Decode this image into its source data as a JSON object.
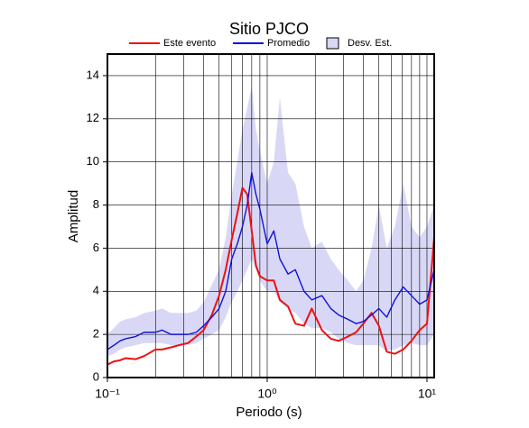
{
  "chart_data": {
    "type": "line",
    "title": "Sitio PJCO",
    "x_label": "Periodo (s)",
    "y_label": "Amplitud",
    "log_x": true,
    "grid": true,
    "xlim": [
      0.1,
      11.1
    ],
    "ylim": [
      0,
      15
    ],
    "xticks": [
      {
        "value": 0.1,
        "label": "10⁻¹"
      },
      {
        "value": 1,
        "label": "10⁰"
      },
      {
        "value": 10,
        "label": "10¹"
      }
    ],
    "xgrid": [
      0.2,
      0.3,
      0.4,
      0.5,
      0.6,
      0.7,
      0.8,
      0.9,
      2,
      3,
      4,
      5,
      6,
      7,
      8,
      9
    ],
    "yticks": [
      0,
      2,
      4,
      6,
      8,
      10,
      12,
      14
    ],
    "x": [
      0.1,
      0.11,
      0.12,
      0.13,
      0.15,
      0.17,
      0.2,
      0.22,
      0.25,
      0.28,
      0.32,
      0.36,
      0.4,
      0.45,
      0.5,
      0.55,
      0.6,
      0.65,
      0.7,
      0.75,
      0.8,
      0.85,
      0.9,
      1.0,
      1.1,
      1.2,
      1.35,
      1.5,
      1.7,
      1.9,
      2.2,
      2.5,
      2.8,
      3.2,
      3.6,
      4.0,
      4.5,
      5.0,
      5.6,
      6.3,
      7.1,
      8.0,
      9.0,
      10.0,
      11.1
    ],
    "band": {
      "name": "Desv. Est.",
      "color": "#d8d8f6",
      "upper": [
        2.0,
        2.3,
        2.6,
        2.7,
        2.8,
        3.0,
        3.1,
        3.2,
        3.0,
        3.0,
        3.0,
        3.1,
        3.5,
        4.3,
        5.0,
        6.5,
        8.5,
        10.0,
        11.5,
        12.5,
        13.5,
        11.5,
        10.5,
        9.0,
        10.0,
        13.0,
        9.5,
        9.0,
        7.0,
        6.0,
        6.3,
        5.5,
        5.0,
        4.5,
        4.0,
        4.5,
        6.0,
        8.0,
        6.0,
        7.0,
        9.0,
        7.0,
        6.5,
        7.0,
        8.0
      ],
      "lower": [
        1.0,
        1.1,
        1.3,
        1.4,
        1.5,
        1.6,
        1.6,
        1.6,
        1.5,
        1.5,
        1.5,
        1.6,
        1.8,
        2.0,
        2.2,
        2.8,
        3.5,
        4.0,
        4.5,
        5.0,
        5.5,
        5.0,
        4.5,
        4.0,
        4.0,
        3.5,
        3.2,
        3.0,
        2.5,
        2.3,
        2.3,
        2.1,
        1.8,
        1.6,
        1.5,
        1.5,
        1.5,
        1.5,
        1.2,
        1.3,
        1.5,
        1.6,
        1.5,
        1.5,
        2.0
      ]
    },
    "series": [
      {
        "name": "Este evento",
        "color": "#ee1111",
        "values": [
          0.6,
          0.75,
          0.8,
          0.9,
          0.85,
          1.0,
          1.3,
          1.3,
          1.4,
          1.5,
          1.6,
          1.9,
          2.2,
          2.9,
          3.8,
          5.0,
          6.4,
          7.6,
          8.8,
          8.5,
          6.8,
          5.2,
          4.7,
          4.5,
          4.5,
          3.6,
          3.3,
          2.5,
          2.4,
          3.2,
          2.2,
          1.8,
          1.7,
          1.9,
          2.1,
          2.5,
          3.0,
          2.4,
          1.2,
          1.1,
          1.3,
          1.7,
          2.2,
          2.5,
          6.5
        ]
      },
      {
        "name": "Promedio",
        "color": "#1111dd",
        "values": [
          1.3,
          1.5,
          1.7,
          1.8,
          1.9,
          2.1,
          2.1,
          2.2,
          2.0,
          2.0,
          2.0,
          2.1,
          2.4,
          2.8,
          3.2,
          4.0,
          5.5,
          6.2,
          7.0,
          8.0,
          9.5,
          8.5,
          7.8,
          6.2,
          6.8,
          5.5,
          4.8,
          5.0,
          4.0,
          3.6,
          3.8,
          3.2,
          2.9,
          2.7,
          2.5,
          2.6,
          2.9,
          3.2,
          2.8,
          3.6,
          4.2,
          3.8,
          3.4,
          3.6,
          5.0
        ]
      }
    ]
  }
}
